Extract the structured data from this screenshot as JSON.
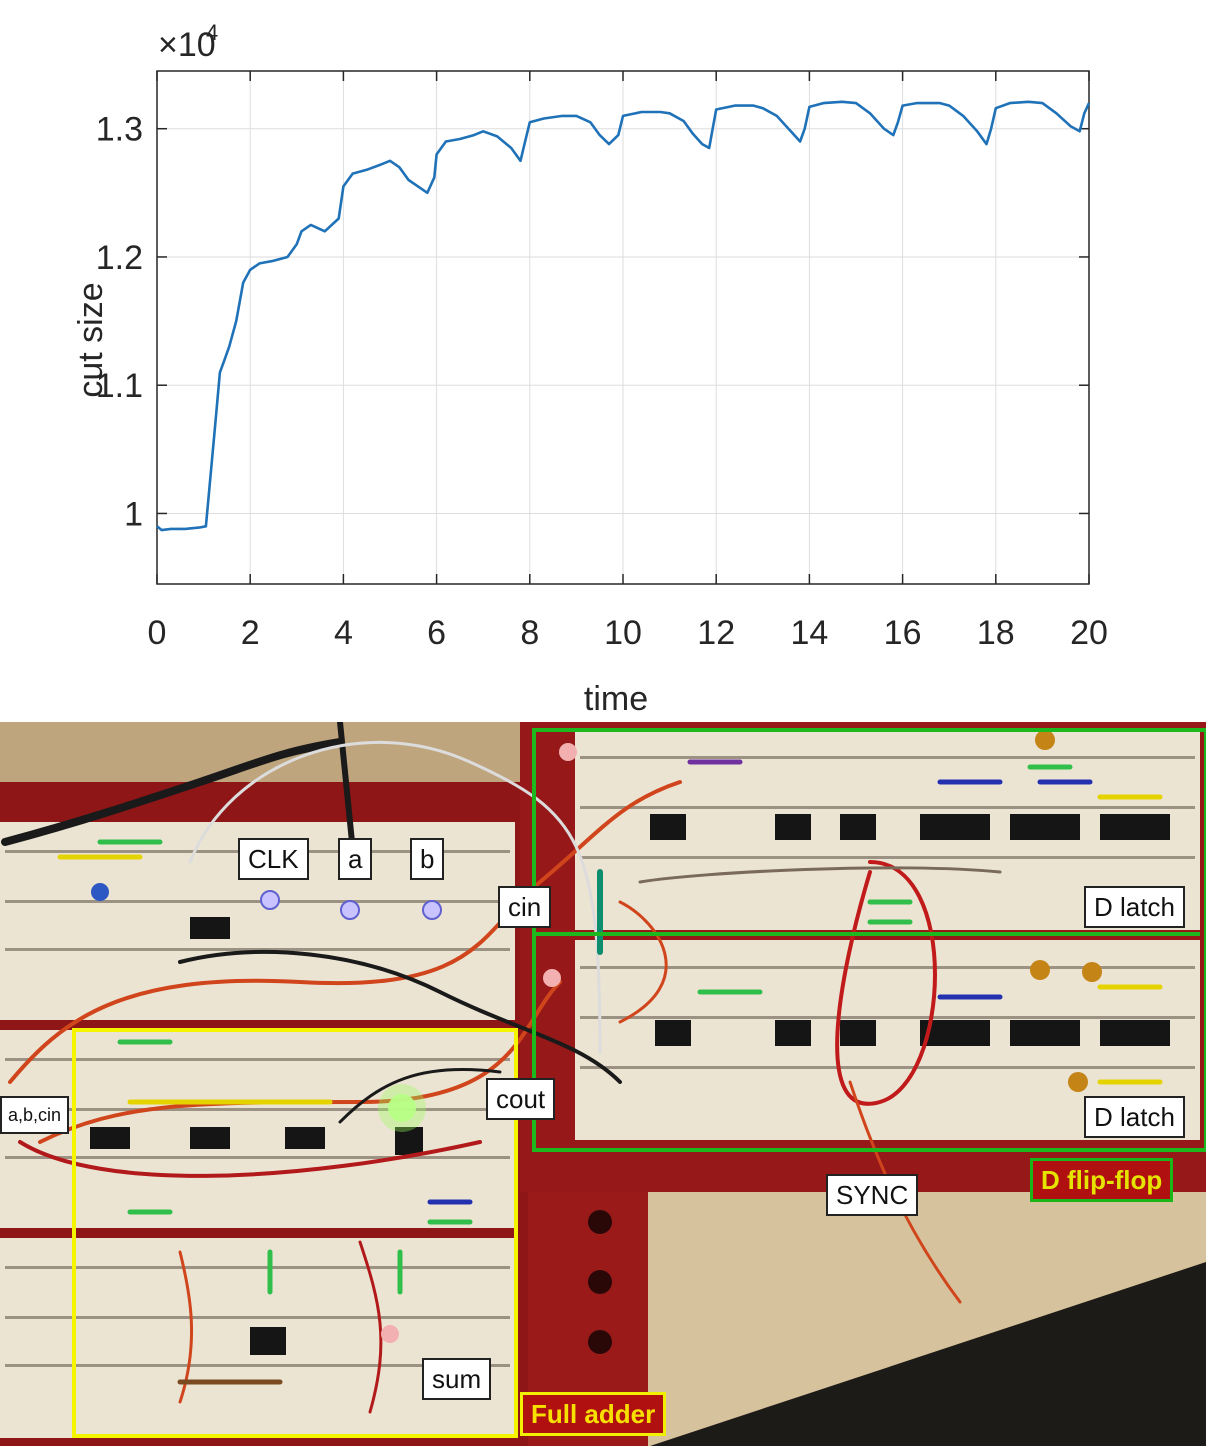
{
  "chart_data": {
    "type": "line",
    "title": "",
    "xlabel": "time",
    "ylabel": "cut size",
    "y_exponent_label": "×10",
    "y_exponent_power": "4",
    "xlim": [
      0,
      20
    ],
    "ylim": [
      0.945,
      1.345
    ],
    "x_ticks": [
      0,
      2,
      4,
      6,
      8,
      10,
      12,
      14,
      16,
      18,
      20
    ],
    "x_tick_labels": [
      "0",
      "2",
      "4",
      "6",
      "8",
      "10",
      "12",
      "14",
      "16",
      "18",
      "20"
    ],
    "y_ticks": [
      1.0,
      1.1,
      1.2,
      1.3
    ],
    "y_tick_labels": [
      "1",
      "1.1",
      "1.2",
      "1.3"
    ],
    "grid": true,
    "line_color": "#1f72b8",
    "series": [
      {
        "x": [
          0.0,
          0.1,
          0.3,
          0.6,
          0.9,
          1.05,
          1.15,
          1.25,
          1.35,
          1.45,
          1.55,
          1.7,
          1.85,
          2.0,
          2.2,
          2.5,
          2.8,
          3.0,
          3.1,
          3.3,
          3.6,
          3.9,
          4.0,
          4.2,
          4.5,
          4.8,
          5.0,
          5.2,
          5.4,
          5.6,
          5.8,
          5.95,
          6.0,
          6.2,
          6.5,
          6.8,
          7.0,
          7.3,
          7.6,
          7.8,
          7.9,
          8.0,
          8.3,
          8.7,
          9.0,
          9.3,
          9.5,
          9.7,
          9.9,
          10.0,
          10.4,
          10.8,
          11.0,
          11.3,
          11.5,
          11.7,
          11.85,
          11.9,
          12.0,
          12.4,
          12.8,
          13.0,
          13.3,
          13.6,
          13.8,
          13.9,
          14.0,
          14.3,
          14.7,
          15.0,
          15.3,
          15.6,
          15.8,
          15.9,
          16.0,
          16.3,
          16.8,
          17.0,
          17.3,
          17.6,
          17.8,
          17.9,
          18.0,
          18.3,
          18.7,
          19.0,
          19.3,
          19.6,
          19.8,
          19.9,
          20.0
        ],
        "y": [
          0.99,
          0.987,
          0.988,
          0.988,
          0.989,
          0.99,
          1.03,
          1.07,
          1.11,
          1.12,
          1.13,
          1.15,
          1.18,
          1.19,
          1.195,
          1.197,
          1.2,
          1.21,
          1.22,
          1.225,
          1.22,
          1.23,
          1.255,
          1.265,
          1.268,
          1.272,
          1.275,
          1.27,
          1.26,
          1.255,
          1.25,
          1.262,
          1.28,
          1.29,
          1.292,
          1.295,
          1.298,
          1.294,
          1.285,
          1.275,
          1.29,
          1.305,
          1.308,
          1.31,
          1.31,
          1.305,
          1.295,
          1.288,
          1.295,
          1.31,
          1.313,
          1.313,
          1.312,
          1.306,
          1.296,
          1.288,
          1.285,
          1.295,
          1.315,
          1.318,
          1.318,
          1.316,
          1.31,
          1.298,
          1.29,
          1.3,
          1.317,
          1.32,
          1.321,
          1.32,
          1.312,
          1.3,
          1.295,
          1.305,
          1.318,
          1.32,
          1.32,
          1.318,
          1.31,
          1.298,
          1.288,
          1.3,
          1.316,
          1.32,
          1.321,
          1.32,
          1.312,
          1.302,
          1.298,
          1.312,
          1.32
        ]
      }
    ]
  },
  "photo": {
    "labels": {
      "clk": "CLK",
      "a": "a",
      "b": "b",
      "cin": "cin",
      "abc": "a,b,cin",
      "cout": "cout",
      "sum": "sum",
      "d_latch_1": "D latch",
      "d_latch_2": "D latch",
      "sync": "SYNC",
      "d_flip_flop": "D flip-flop",
      "full_adder": "Full adder"
    },
    "colors": {
      "full_adder_box": "#f5f500",
      "flip_flop_box": "#1db81d",
      "tag_background": "#b01010",
      "tag_text": "#f7e000"
    }
  }
}
